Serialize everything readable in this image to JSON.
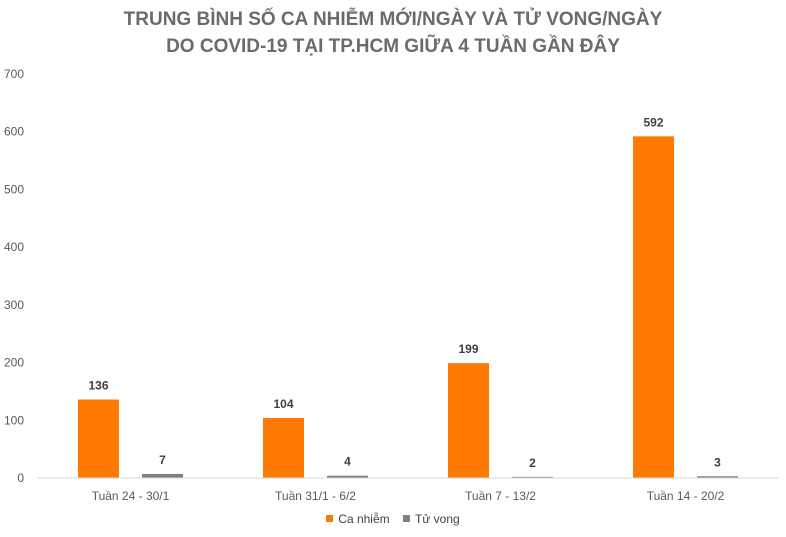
{
  "chart_data": {
    "type": "bar",
    "title_line1": "TRUNG BÌNH SỐ CA NHIỄM MỚI/NGÀY VÀ TỬ VONG/NGÀY",
    "title_line2": "DO COVID-19 TẠI TP.HCM GIỮA 4 TUẦN GẦN ĐÂY",
    "categories": [
      "Tuần 24 - 30/1",
      "Tuần 31/1 - 6/2",
      "Tuần 7 - 13/2",
      "Tuần 14 - 20/2"
    ],
    "series": [
      {
        "name": "Ca nhiễm",
        "values": [
          136,
          104,
          199,
          592
        ],
        "color": "#ff7a00"
      },
      {
        "name": "Tử vong",
        "values": [
          7,
          4,
          2,
          3
        ],
        "color": "#808080"
      }
    ],
    "ylim": [
      0,
      700
    ],
    "yticks": [
      0,
      100,
      200,
      300,
      400,
      500,
      600,
      700
    ],
    "grid": false,
    "legend_position": "bottom"
  }
}
